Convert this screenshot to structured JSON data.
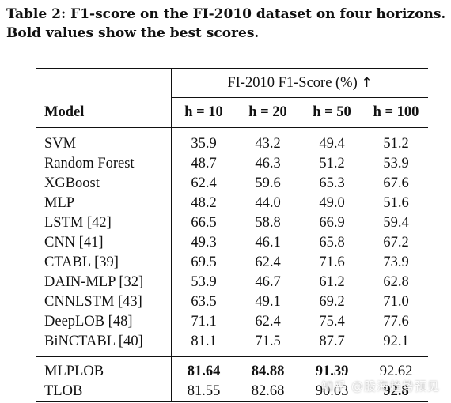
{
  "caption": "Table 2: F1-score on the FI-2010 dataset on four horizons. Bold values show the best scores.",
  "table": {
    "group_header": "FI-2010 F1-Score (%)",
    "group_arrow": "↑",
    "columns": [
      "Model",
      "h = 10",
      "h = 20",
      "h = 50",
      "h = 100"
    ],
    "rows": [
      {
        "model": "SVM",
        "values": [
          "35.9",
          "43.2",
          "49.4",
          "51.2"
        ]
      },
      {
        "model": "Random Forest",
        "values": [
          "48.7",
          "46.3",
          "51.2",
          "53.9"
        ]
      },
      {
        "model": "XGBoost",
        "values": [
          "62.4",
          "59.6",
          "65.3",
          "67.6"
        ]
      },
      {
        "model": "MLP",
        "values": [
          "48.2",
          "44.0",
          "49.0",
          "51.6"
        ]
      },
      {
        "model": "LSTM [42]",
        "values": [
          "66.5",
          "58.8",
          "66.9",
          "59.4"
        ]
      },
      {
        "model": "CNN [41]",
        "values": [
          "49.3",
          "46.1",
          "65.8",
          "67.2"
        ]
      },
      {
        "model": "CTABL [39]",
        "values": [
          "69.5",
          "62.4",
          "71.6",
          "73.9"
        ]
      },
      {
        "model": "DAIN-MLP [32]",
        "values": [
          "53.9",
          "46.7",
          "61.2",
          "62.8"
        ]
      },
      {
        "model": "CNNLSTM [43]",
        "values": [
          "63.5",
          "49.1",
          "69.2",
          "71.0"
        ]
      },
      {
        "model": "DeepLOB [48]",
        "values": [
          "71.1",
          "62.4",
          "75.4",
          "77.6"
        ]
      },
      {
        "model": "BiNCTABL [40]",
        "values": [
          "81.1",
          "71.5",
          "87.7",
          "92.1"
        ]
      }
    ],
    "proposed_rows": [
      {
        "model": "MLPLOB",
        "values": [
          "81.64",
          "84.88",
          "91.39",
          "92.62"
        ],
        "bold": [
          true,
          true,
          true,
          false
        ]
      },
      {
        "model": "TLOB",
        "values": [
          "81.55",
          "82.68",
          "90.03",
          "92.8"
        ],
        "bold": [
          false,
          false,
          false,
          true
        ]
      }
    ]
  },
  "watermark": "知乎 @股海趋势预见"
}
